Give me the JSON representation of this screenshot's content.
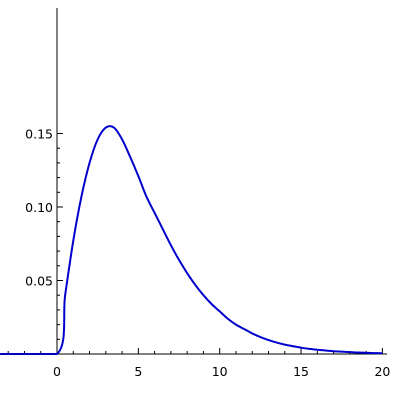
{
  "chart_data": {
    "type": "line",
    "title": "",
    "xlabel": "",
    "ylabel": "",
    "xlim": [
      -3.5,
      20.2
    ],
    "ylim": [
      0,
      0.156
    ],
    "grid": false,
    "legend": "none",
    "x_ticks": [
      0,
      5,
      10,
      15,
      20
    ],
    "x_tick_labels": [
      "0",
      "5",
      "10",
      "15",
      "20"
    ],
    "y_ticks": [
      0.05,
      0.1,
      0.15
    ],
    "y_tick_labels": [
      "0.05",
      "0.10",
      "0.15"
    ],
    "line_color": "#0000cc",
    "series": [
      {
        "x": [
          -3.5,
          0,
          0.5,
          1,
          1.5,
          2,
          2.5,
          3,
          3.5,
          4,
          4.5,
          5,
          5.5,
          6,
          6.5,
          7,
          7.5,
          8,
          8.5,
          9,
          9.5,
          10,
          10.5,
          11,
          11.5,
          12,
          12.5,
          13,
          13.5,
          14,
          14.5,
          15,
          15.5,
          16,
          16.5,
          17,
          17.5,
          18,
          18.5,
          19,
          19.5,
          20
        ],
        "y": [
          0,
          0,
          0.04,
          0.077,
          0.107,
          0.13,
          0.146,
          0.154,
          0.154,
          0.146,
          0.134,
          0.121,
          0.107,
          0.096,
          0.085,
          0.074,
          0.064,
          0.055,
          0.047,
          0.04,
          0.034,
          0.029,
          0.024,
          0.02,
          0.017,
          0.014,
          0.0115,
          0.0095,
          0.0078,
          0.0064,
          0.0053,
          0.0043,
          0.0035,
          0.0029,
          0.0024,
          0.0019,
          0.0016,
          0.0013,
          0.001,
          0.0008,
          0.0006,
          0.0005
        ]
      }
    ]
  }
}
